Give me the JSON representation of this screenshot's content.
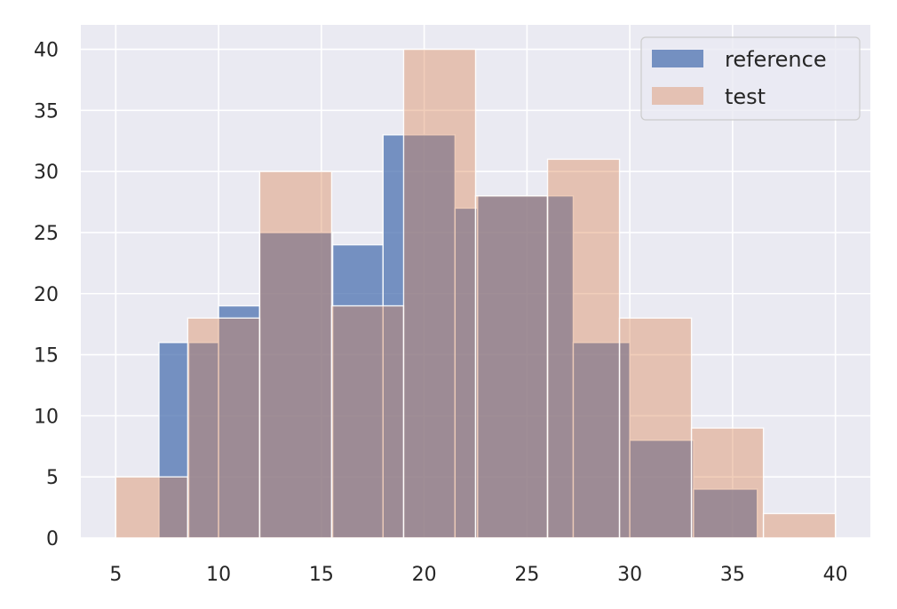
{
  "chart_data": {
    "type": "histogram",
    "title": "",
    "xlabel": "",
    "ylabel": "",
    "xlim": [
      3.3,
      41.7
    ],
    "ylim": [
      0,
      42
    ],
    "xticks": [
      5,
      10,
      15,
      20,
      25,
      30,
      35,
      40
    ],
    "yticks": [
      0,
      5,
      10,
      15,
      20,
      25,
      30,
      35,
      40
    ],
    "grid": true,
    "legend_position": "top-right",
    "series": [
      {
        "name": "reference",
        "color": "#4c72b0",
        "bin_edges": [
          7.1,
          8.55,
          10.0,
          12.0,
          15.55,
          18.0,
          21.5,
          22.6,
          26.0,
          27.25,
          30.0,
          33.1,
          36.2
        ],
        "counts": [
          16,
          16,
          19,
          25,
          24,
          33,
          27,
          28,
          28,
          16,
          8,
          4
        ]
      },
      {
        "name": "test",
        "color": "#dd8452",
        "bin_edges": [
          5.0,
          8.5,
          12.0,
          15.5,
          19.0,
          22.5,
          26.0,
          29.5,
          33.0,
          36.5,
          40.0
        ],
        "counts": [
          5,
          18,
          30,
          19,
          40,
          28,
          31,
          18,
          9,
          2
        ]
      }
    ]
  }
}
